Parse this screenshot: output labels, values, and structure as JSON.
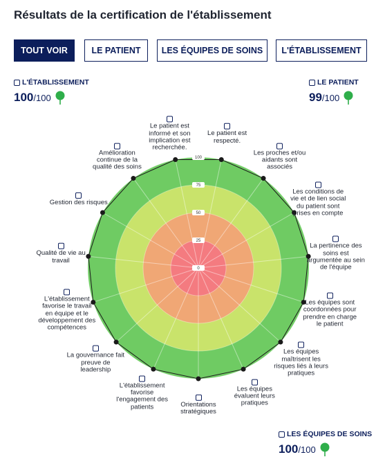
{
  "title": "Résultats de la certification de l'établissement",
  "tabs": [
    "TOUT VOIR",
    "LE PATIENT",
    "LES ÉQUIPES DE SOINS",
    "L'ÉTABLISSEMENT"
  ],
  "scores": [
    {
      "label": "L'ÉTABLISSEMENT",
      "value": 100,
      "max": "/100"
    },
    {
      "label": "LE PATIENT",
      "value": 99,
      "max": "/100"
    },
    {
      "label": "LES ÉQUIPES DE SOINS",
      "value": 100,
      "max": "/100"
    }
  ],
  "chart_data": {
    "type": "radar",
    "categories": [
      "Le patient est informé et son implication est recherchée.",
      "Le patient est respecté.",
      "Les proches et/ou aidants sont associés",
      "Les conditions de vie et de lien social du patient sont prises en compte",
      "La pertinence des soins est argumentée au sein de l'équipe",
      "Les équipes sont coordonnées pour prendre en charge le patient",
      "Les équipes maîtrisent les risques liés à leurs pratiques",
      "Les équipes évaluent leurs pratiques",
      "Orientations stratégiques",
      "L'établissement favorise l'engagement des patients",
      "La gouvernance fait preuve de leadership",
      "L'établissement favorise le travail en équipe et le développement des compétences",
      "Qualité de vie au travail",
      "Gestion des risques",
      "Amélioration continue de la qualité des soins"
    ],
    "values": [
      100,
      100,
      100,
      100,
      100,
      100,
      100,
      100,
      100,
      100,
      100,
      100,
      100,
      100,
      100
    ],
    "rlim": [
      0,
      100
    ],
    "rticks": [
      0,
      25,
      50,
      75,
      100
    ],
    "band_colors": [
      "#f47b80",
      "#f0a775",
      "#c9e36b",
      "#6fcb63"
    ],
    "line_color": "#1a1a1a"
  }
}
